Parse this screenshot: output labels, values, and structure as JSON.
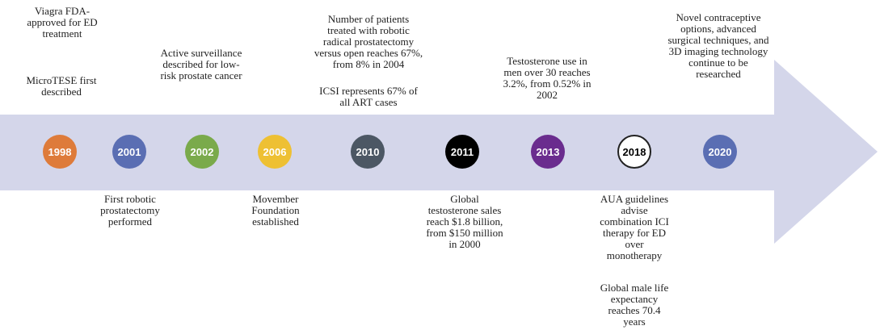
{
  "timeline": {
    "arrow_color": "#d4d6ea",
    "events": [
      {
        "year": "1998",
        "color": "#de7b3a",
        "text_color": "#ffffff",
        "above": [
          "Viagra FDA-approved for ED treatment",
          "MicroTESE first described"
        ],
        "below": []
      },
      {
        "year": "2001",
        "color": "#5a6eb3",
        "text_color": "#ffffff",
        "above": [],
        "below": [
          "First robotic prostatectomy performed"
        ]
      },
      {
        "year": "2002",
        "color": "#7aaa4b",
        "text_color": "#ffffff",
        "above": [
          "Active surveillance described for low-risk prostate cancer"
        ],
        "below": []
      },
      {
        "year": "2006",
        "color": "#eec033",
        "text_color": "#ffffff",
        "above": [],
        "below": [
          "Movember Foundation established"
        ]
      },
      {
        "year": "2010",
        "color": "#4c5764",
        "text_color": "#ffffff",
        "above": [
          "Number of patients treated with robotic radical prostatectomy versus open reaches 67%, from 8% in 2004",
          "ICSI represents 67% of all ART cases"
        ],
        "below": []
      },
      {
        "year": "2011",
        "color": "#000000",
        "text_color": "#ffffff",
        "above": [],
        "below": [
          "Global testosterone sales reach $1.8 billion, from $150 million in 2000"
        ]
      },
      {
        "year": "2013",
        "color": "#6a2c8e",
        "text_color": "#ffffff",
        "above": [
          "Testosterone use in men over 30 reaches 3.2%, from 0.52% in 2002"
        ],
        "below": []
      },
      {
        "year": "2018",
        "color": "#ffffff",
        "text_color": "#000000",
        "above": [],
        "below": [
          "AUA guidelines advise combination ICI therapy for ED over monotherapy",
          "Global male life expectancy reaches 70.4 years"
        ]
      },
      {
        "year": "2020",
        "color": "#5a6eb3",
        "text_color": "#ffffff",
        "above": [
          "Novel contraceptive options, advanced surgical techniques, and 3D imaging technology continue to be researched"
        ],
        "below": []
      }
    ]
  }
}
